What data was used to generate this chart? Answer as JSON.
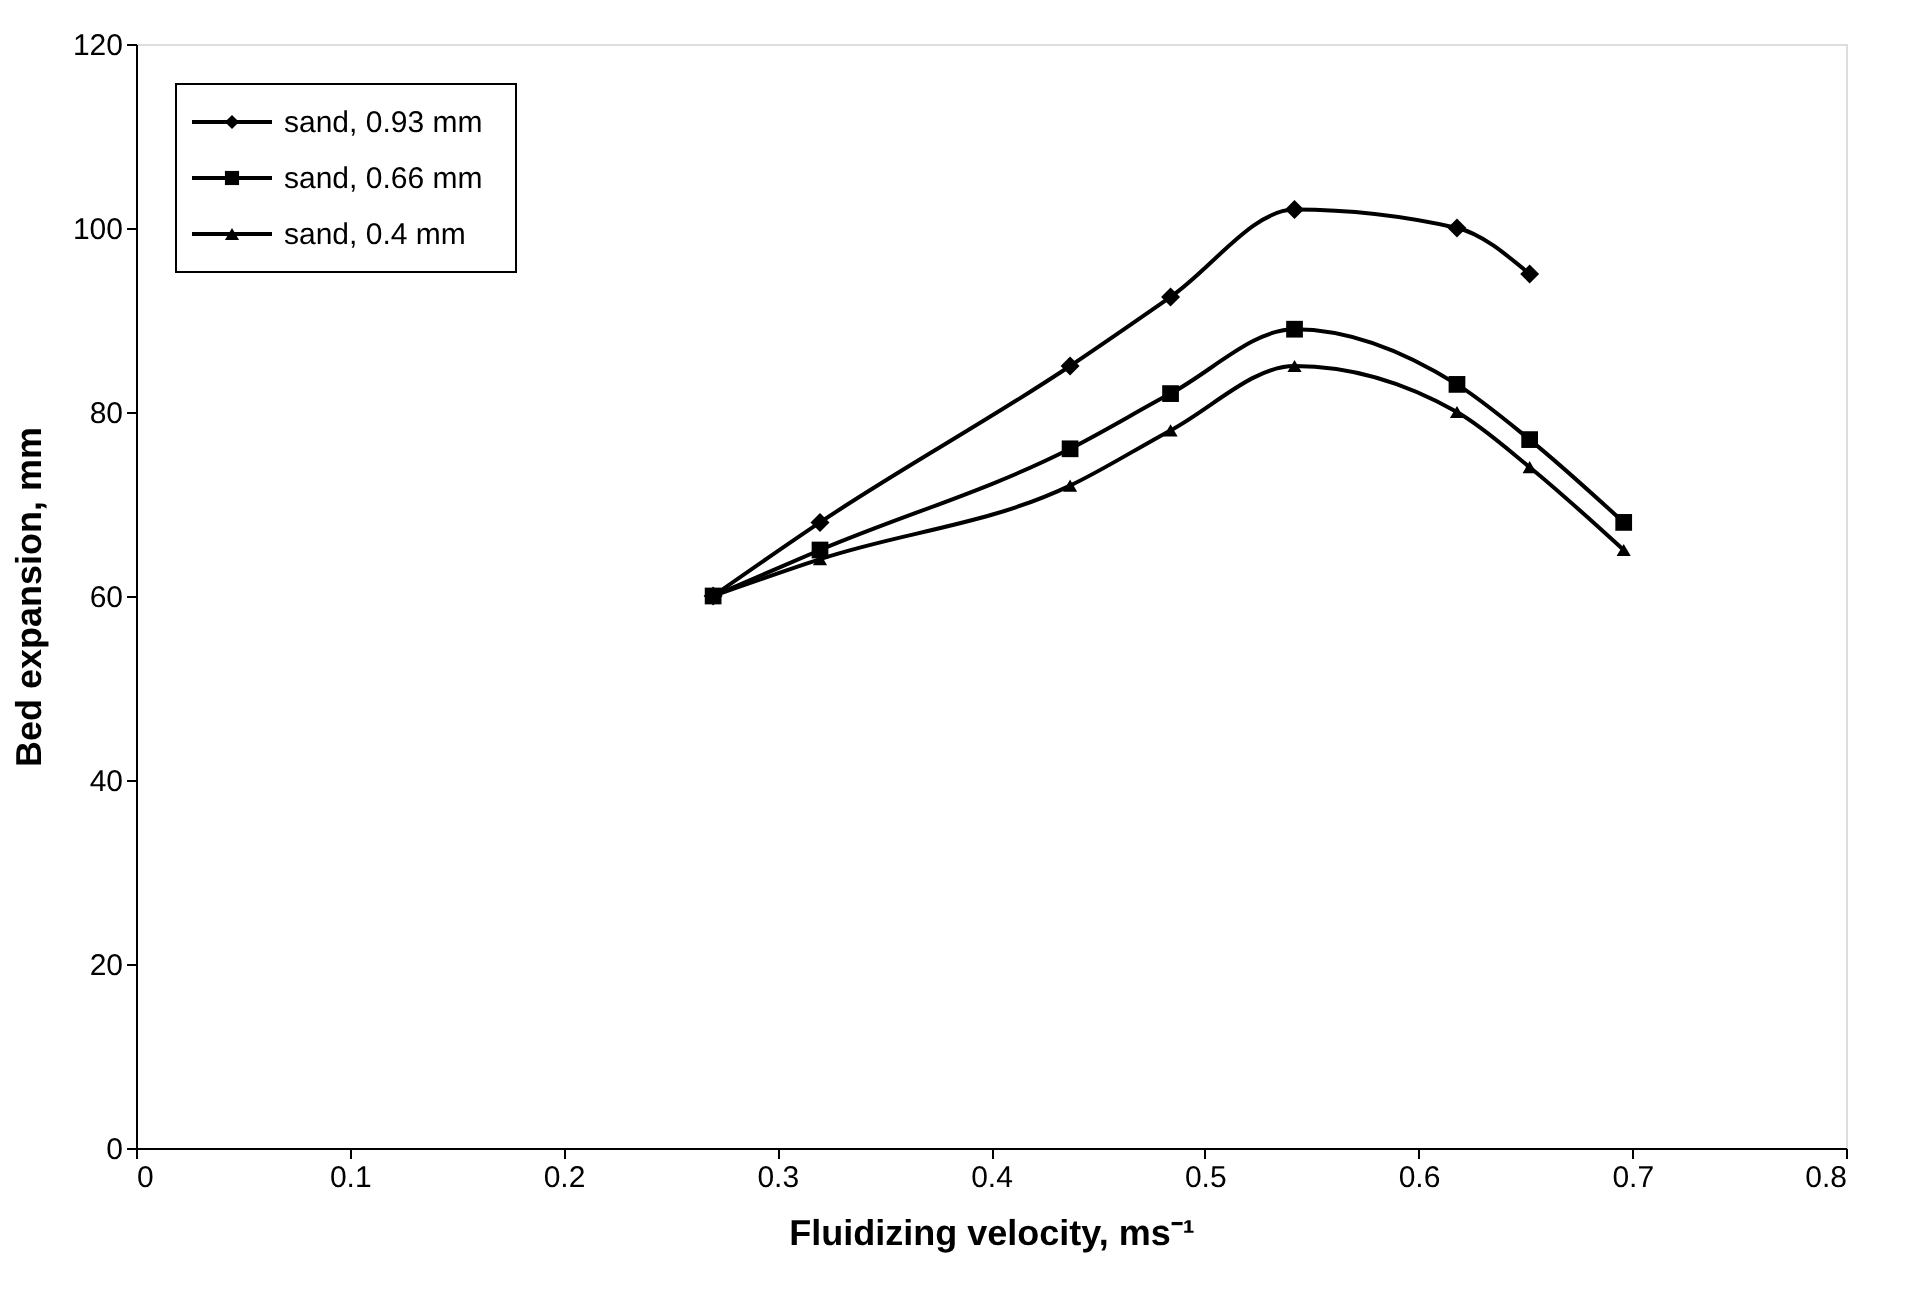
{
  "chart_data": {
    "type": "line",
    "xlabel": "Fluidizing velocity, ms⁻¹",
    "ylabel": "Bed expansion, mm",
    "xlim": [
      0,
      0.8
    ],
    "xticks": [
      0,
      0.1,
      0.2,
      0.3,
      0.4,
      0.5,
      0.6,
      0.7,
      0.8
    ],
    "ylim": [
      0,
      120
    ],
    "yticks": [
      0,
      20,
      40,
      60,
      80,
      100,
      120
    ],
    "grid": false,
    "legend": "top left",
    "series": [
      {
        "name": "sand, 0.93 mm",
        "color": "#000000",
        "marker": "diamond",
        "x": [
          0.27,
          0.32,
          0.437,
          0.484,
          0.542,
          0.618,
          0.652
        ],
        "values": [
          60,
          68,
          85,
          92.5,
          102,
          100,
          95
        ]
      },
      {
        "name": "sand, 0.66 mm",
        "color": "#000000",
        "marker": "square",
        "x": [
          0.27,
          0.32,
          0.437,
          0.484,
          0.542,
          0.618,
          0.652,
          0.696
        ],
        "values": [
          60,
          65,
          76,
          82,
          89,
          83,
          77,
          68
        ]
      },
      {
        "name": "sand, 0.4 mm",
        "color": "#000000",
        "marker": "triangle",
        "x": [
          0.27,
          0.32,
          0.437,
          0.484,
          0.542,
          0.618,
          0.652,
          0.696
        ],
        "values": [
          60,
          64,
          72,
          78,
          85,
          80,
          74,
          65
        ]
      }
    ]
  }
}
